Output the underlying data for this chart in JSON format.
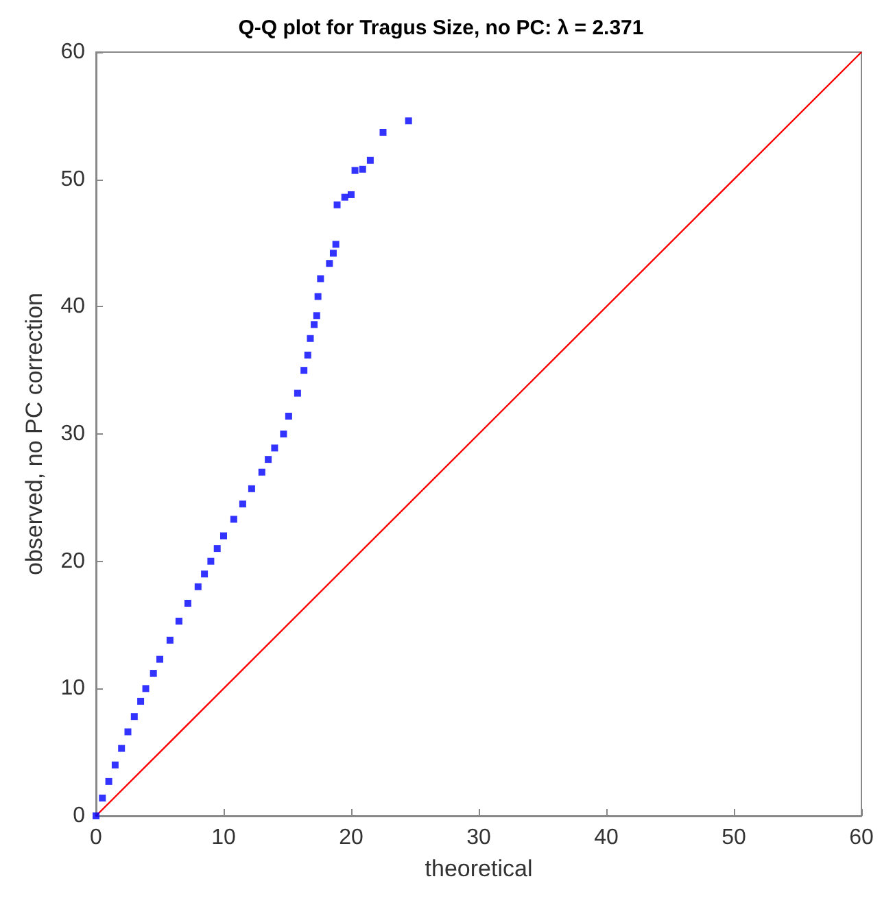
{
  "chart_data": {
    "type": "scatter",
    "title": "Q-Q plot for Tragus Size, no PC: λ = 2.371",
    "xlabel": "theoretical",
    "ylabel": "observed, no PC correction",
    "xlim": [
      0,
      60
    ],
    "ylim": [
      0,
      60
    ],
    "xticks": [
      0,
      10,
      20,
      30,
      40,
      50,
      60
    ],
    "yticks": [
      0,
      10,
      20,
      30,
      40,
      50,
      60
    ],
    "grid": false,
    "marker": "square",
    "series": [
      {
        "color": "#0000ff",
        "x": [
          0,
          0.5,
          1,
          1.5,
          2,
          2.5,
          3,
          3.5,
          3.9,
          4.5,
          5,
          5.8,
          6.5,
          7.2,
          8,
          8.5,
          9,
          9.5,
          10,
          10.8,
          11.5,
          12.2,
          13,
          13.5,
          14,
          14.7,
          15.1,
          15.8,
          16.3,
          16.6,
          16.8,
          17.1,
          17.3,
          17.4,
          17.6,
          18.3,
          18.6,
          18.8,
          18.9,
          19.5,
          20.0,
          20.3,
          20.9,
          21.5,
          22.5,
          24.5
        ],
        "values": [
          0,
          1.4,
          2.7,
          4.0,
          5.3,
          6.6,
          7.8,
          9.0,
          10,
          11.2,
          12.3,
          13.8,
          15.3,
          16.7,
          18,
          19,
          20,
          21,
          22,
          23.3,
          24.5,
          25.7,
          27,
          28,
          28.9,
          30,
          31.4,
          33.2,
          35.0,
          36.2,
          37.5,
          38.6,
          39.3,
          40.8,
          42.2,
          43.4,
          44.2,
          44.9,
          48.0,
          48.6,
          48.8,
          50.7,
          50.8,
          51.5,
          53.7,
          54.6
        ]
      },
      {
        "type": "line",
        "color": "#ff0000",
        "marker": "none",
        "x": [
          0,
          60
        ],
        "values": [
          0,
          60
        ]
      }
    ]
  }
}
